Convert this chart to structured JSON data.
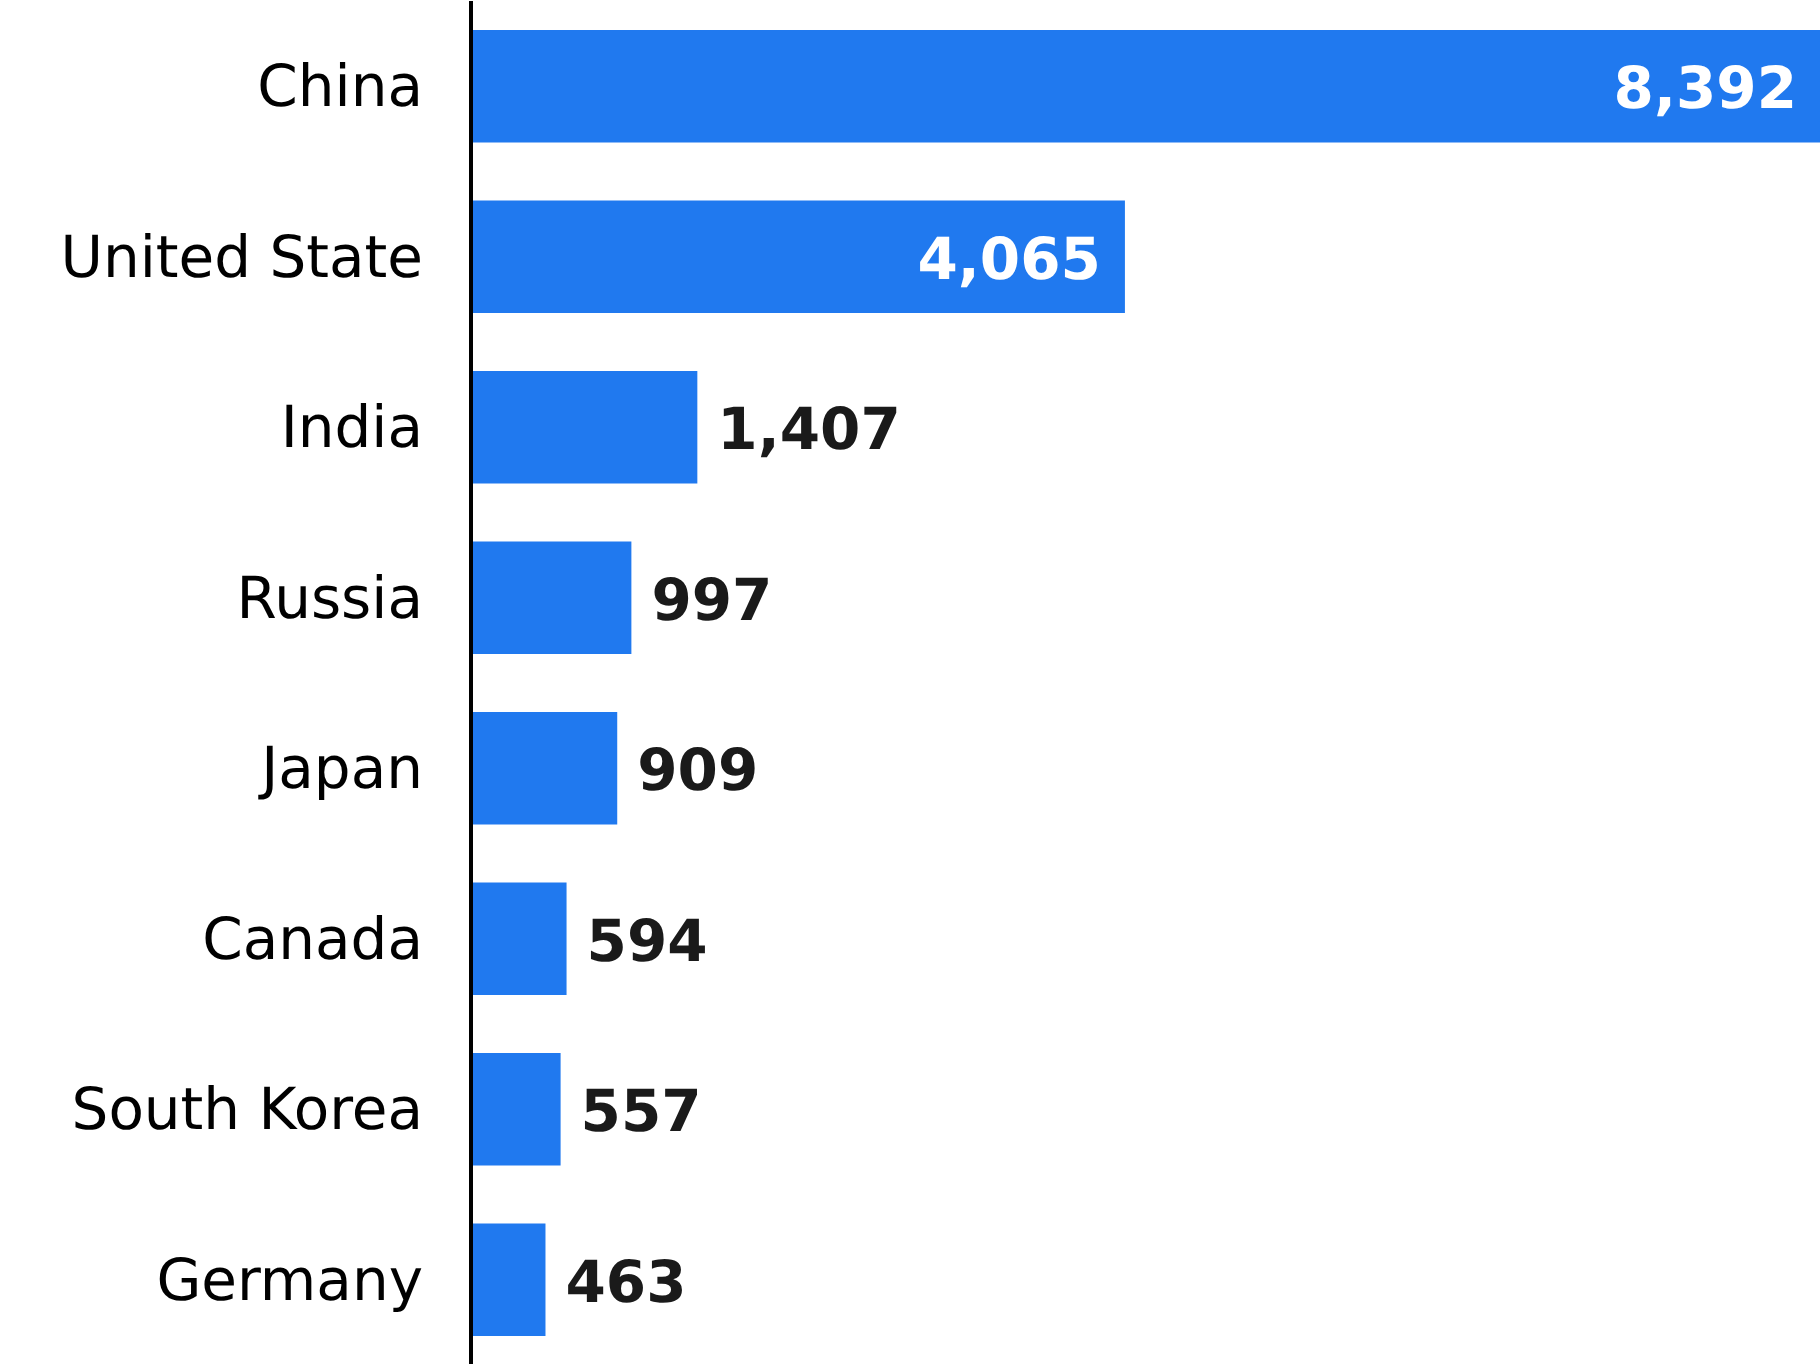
{
  "chart_data": {
    "type": "bar",
    "orientation": "horizontal",
    "categories": [
      "China",
      "United State",
      "India",
      "Russia",
      "Japan",
      "Canada",
      "South Korea",
      "Germany"
    ],
    "values": [
      8392,
      4065,
      1407,
      997,
      909,
      594,
      557,
      463
    ],
    "value_labels": [
      "8,392",
      "4,065",
      "1,407",
      "997",
      "909",
      "594",
      "557",
      "463"
    ],
    "color": "#2079ef",
    "grid": false
  }
}
